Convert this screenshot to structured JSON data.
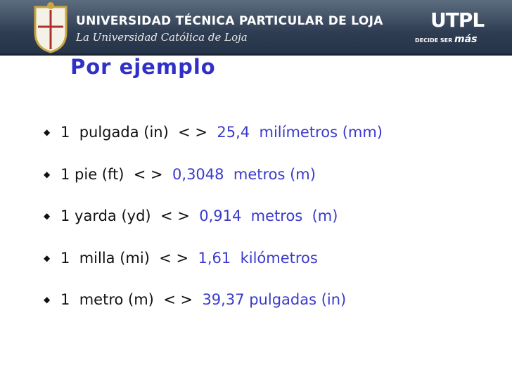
{
  "header": {
    "university": "UNIVERSIDAD TÉCNICA PARTICULAR DE LOJA",
    "tagline": "La Universidad Católica de Loja",
    "logo": "UTPL",
    "slogan": "DECIDE SER",
    "slogan_emphasis": "más"
  },
  "title": "Por ejemplo",
  "items": [
    {
      "left": "1  pulgada (in)  < >",
      "right": "25,4  milímetros (mm)"
    },
    {
      "left": "1 pie (ft)  < >",
      "right": "0,3048  metros (m)"
    },
    {
      "left": "1 yarda (yd)  < >",
      "right": "0,914  metros  (m)"
    },
    {
      "left": "1  milla (mi)  < >",
      "right": "1,61  kilómetros"
    },
    {
      "left": "1  metro (m)  < >",
      "right": "39,37 pulgadas (in)"
    }
  ]
}
